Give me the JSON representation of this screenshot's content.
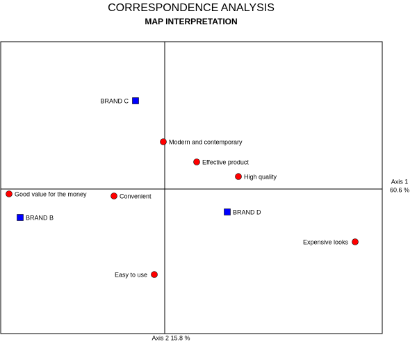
{
  "chart_data": {
    "type": "scatter",
    "title": "CORRESPONDENCE ANALYSIS",
    "subtitle": "MAP INTERPRETATION",
    "x_label": [
      "Axis 1",
      "60.6 %"
    ],
    "y_label": "Axis 2 15.8 %",
    "xlim": [
      -2.36,
      3.13
    ],
    "ylim": [
      -2.08,
      2.12
    ],
    "series": [
      {
        "marker": "square",
        "color": "#0000ff",
        "labels": [
          "BRAND C",
          "BRAND B",
          "BRAND D"
        ],
        "x": [
          -0.42,
          -2.08,
          0.9
        ],
        "y": [
          1.27,
          -0.41,
          -0.33
        ]
      },
      {
        "marker": "circle",
        "color": "#ff0000",
        "labels": [
          "Modern and contemporary",
          "Effective product",
          "High quality",
          "Good value for the money",
          "Convenient",
          "Expensive looks",
          "Easy to use"
        ],
        "x": [
          -0.02,
          0.46,
          1.06,
          -2.24,
          -0.73,
          2.74,
          -0.15
        ],
        "y": [
          0.68,
          0.39,
          0.18,
          -0.07,
          -0.1,
          -0.76,
          -1.23
        ]
      }
    ]
  }
}
